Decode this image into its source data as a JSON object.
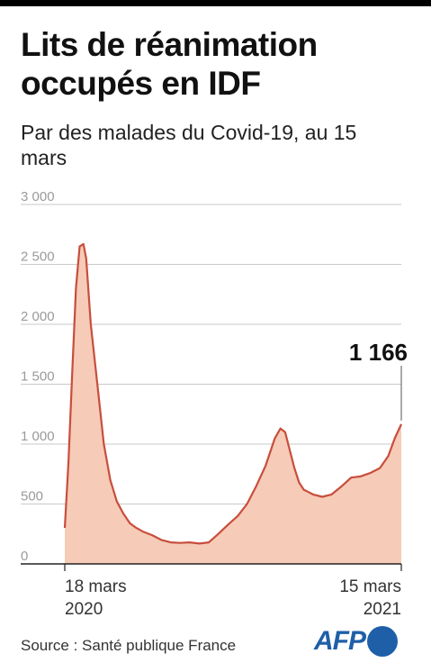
{
  "header": {
    "title": "Lits de réanimation occupés en IDF",
    "subtitle": "Par des malades du Covid-19, au 15 mars"
  },
  "footer": {
    "source": "Source : Santé publique France",
    "logo": "AFP"
  },
  "colors": {
    "line": "#c84e3c",
    "fill": "#f6cbb8",
    "grid": "#c9c9c9",
    "axis": "#222222",
    "logo": "#1f5fa8"
  },
  "chart_data": {
    "type": "area",
    "title": "Lits de réanimation occupés en IDF",
    "subtitle": "Par des malades du Covid-19, au 15 mars",
    "ylim": [
      0,
      3000
    ],
    "yticks": [
      0,
      500,
      1000,
      1500,
      2000,
      2500,
      3000
    ],
    "ytick_labels": [
      "0",
      "500",
      "1 000",
      "1 500",
      "2 000",
      "2 500",
      "3 000"
    ],
    "x_range": [
      "2020-03-18",
      "2021-03-15"
    ],
    "x_tick_labels": [
      {
        "date": "2020-03-18",
        "line1": "18 mars",
        "line2": "2020"
      },
      {
        "date": "2021-03-15",
        "line1": "15 mars",
        "line2": "2021"
      }
    ],
    "grid": true,
    "annotation": {
      "date": "2021-03-15",
      "value": 1166,
      "label": "1 166"
    },
    "series": [
      {
        "x": [
          "2020-03-18",
          "2020-03-22",
          "2020-03-26",
          "2020-03-30",
          "2020-04-03",
          "2020-04-07",
          "2020-04-10",
          "2020-04-15",
          "2020-04-22",
          "2020-04-29",
          "2020-05-06",
          "2020-05-13",
          "2020-05-20",
          "2020-05-27",
          "2020-06-03",
          "2020-06-10",
          "2020-06-20",
          "2020-06-30",
          "2020-07-10",
          "2020-07-20",
          "2020-07-30",
          "2020-08-10",
          "2020-08-20",
          "2020-08-30",
          "2020-09-10",
          "2020-09-20",
          "2020-09-30",
          "2020-10-10",
          "2020-10-20",
          "2020-10-30",
          "2020-11-05",
          "2020-11-10",
          "2020-11-15",
          "2020-11-20",
          "2020-11-25",
          "2020-11-30",
          "2020-12-05",
          "2020-12-10",
          "2020-12-20",
          "2020-12-30",
          "2021-01-10",
          "2021-01-20",
          "2021-01-30",
          "2021-02-10",
          "2021-02-20",
          "2021-03-01",
          "2021-03-08",
          "2021-03-15"
        ],
        "values": [
          300,
          850,
          1600,
          2300,
          2650,
          2670,
          2550,
          2000,
          1500,
          1000,
          700,
          520,
          420,
          340,
          300,
          270,
          240,
          200,
          180,
          175,
          180,
          170,
          180,
          250,
          330,
          400,
          500,
          650,
          820,
          1050,
          1130,
          1100,
          950,
          800,
          680,
          620,
          600,
          580,
          560,
          580,
          650,
          720,
          730,
          760,
          800,
          900,
          1050,
          1166
        ]
      }
    ]
  }
}
